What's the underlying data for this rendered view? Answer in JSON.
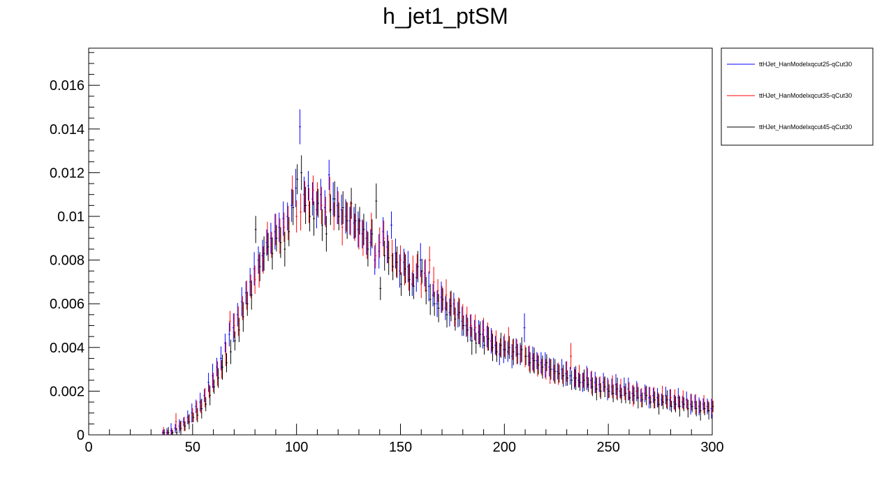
{
  "chart_data": {
    "type": "scatter",
    "title": "h_jet1_ptSM",
    "xlabel": "",
    "ylabel": "",
    "xlim": [
      0,
      300
    ],
    "ylim": [
      0,
      0.0177
    ],
    "grid": false,
    "legend_position": "top-right, outside plot",
    "x_ticks": [
      "0",
      "50",
      "100",
      "150",
      "200",
      "250",
      "300"
    ],
    "y_ticks": [
      "0",
      "0.002",
      "0.004",
      "0.006",
      "0.008",
      "0.01",
      "0.012",
      "0.014",
      "0.016"
    ],
    "bin_width": 2,
    "series": [
      {
        "name": "ttHJet_HanModelxqcut25-qCut30",
        "color": "#0000ff",
        "x": [
          36,
          38,
          40,
          42,
          44,
          46,
          48,
          50,
          52,
          54,
          56,
          58,
          60,
          62,
          64,
          66,
          68,
          70,
          72,
          74,
          76,
          78,
          80,
          82,
          84,
          86,
          88,
          90,
          92,
          94,
          96,
          98,
          100,
          102,
          104,
          106,
          108,
          110,
          112,
          114,
          116,
          118,
          120,
          122,
          124,
          126,
          128,
          130,
          132,
          134,
          136,
          138,
          140,
          142,
          144,
          146,
          148,
          150,
          152,
          154,
          156,
          158,
          160,
          162,
          164,
          166,
          168,
          170,
          172,
          174,
          176,
          178,
          180,
          182,
          184,
          186,
          188,
          190,
          192,
          194,
          196,
          198,
          200,
          202,
          204,
          206,
          208,
          210,
          212,
          214,
          216,
          218,
          220,
          222,
          224,
          226,
          228,
          230,
          232,
          234,
          236,
          238,
          240,
          242,
          244,
          246,
          248,
          250,
          252,
          254,
          256,
          258,
          260,
          262,
          264,
          266,
          268,
          270,
          272,
          274,
          276,
          278,
          280,
          282,
          284,
          286,
          288,
          290,
          292,
          294,
          296,
          298,
          300
        ],
        "y": [
          0.0001,
          0.0001,
          0.0002,
          0.0003,
          0.0004,
          0.0006,
          0.0008,
          0.001,
          0.0013,
          0.0015,
          0.0018,
          0.0024,
          0.0027,
          0.0031,
          0.0035,
          0.0042,
          0.0046,
          0.0049,
          0.0055,
          0.0061,
          0.0065,
          0.007,
          0.0076,
          0.008,
          0.0082,
          0.0088,
          0.009,
          0.0093,
          0.0095,
          0.0099,
          0.01,
          0.0105,
          0.0113,
          0.0141,
          0.011,
          0.0114,
          0.0108,
          0.0103,
          0.011,
          0.0104,
          0.0119,
          0.0108,
          0.0105,
          0.0103,
          0.01,
          0.0098,
          0.0097,
          0.0094,
          0.0092,
          0.009,
          0.0088,
          0.008,
          0.0084,
          0.0093,
          0.0086,
          0.0096,
          0.0083,
          0.0075,
          0.0079,
          0.0077,
          0.0069,
          0.0072,
          0.008,
          0.0074,
          0.0068,
          0.0064,
          0.006,
          0.0063,
          0.0058,
          0.0056,
          0.006,
          0.0055,
          0.0052,
          0.005,
          0.0049,
          0.0048,
          0.0047,
          0.0046,
          0.0045,
          0.0043,
          0.0041,
          0.0037,
          0.0039,
          0.0038,
          0.0036,
          0.004,
          0.0037,
          0.0049,
          0.0036,
          0.0035,
          0.0034,
          0.0033,
          0.0032,
          0.0031,
          0.003,
          0.0029,
          0.003,
          0.0028,
          0.0027,
          0.0026,
          0.0025,
          0.0024,
          0.0026,
          0.0025,
          0.0024,
          0.0023,
          0.0024,
          0.0021,
          0.0022,
          0.0023,
          0.002,
          0.0022,
          0.0021,
          0.0019,
          0.002,
          0.0018,
          0.0019,
          0.0017,
          0.0018,
          0.0017,
          0.0016,
          0.0018,
          0.0016,
          0.0015,
          0.0017,
          0.0015,
          0.0016,
          0.0014,
          0.0015,
          0.0013,
          0.0014,
          0.0013,
          0.0012
        ]
      },
      {
        "name": "ttHJet_HanModelxqcut35-qCut30",
        "color": "#ff0000",
        "x": [
          36,
          38,
          40,
          42,
          44,
          46,
          48,
          50,
          52,
          54,
          56,
          58,
          60,
          62,
          64,
          66,
          68,
          70,
          72,
          74,
          76,
          78,
          80,
          82,
          84,
          86,
          88,
          90,
          92,
          94,
          96,
          98,
          100,
          102,
          104,
          106,
          108,
          110,
          112,
          114,
          116,
          118,
          120,
          122,
          124,
          126,
          128,
          130,
          132,
          134,
          136,
          138,
          140,
          142,
          144,
          146,
          148,
          150,
          152,
          154,
          156,
          158,
          160,
          162,
          164,
          166,
          168,
          170,
          172,
          174,
          176,
          178,
          180,
          182,
          184,
          186,
          188,
          190,
          192,
          194,
          196,
          198,
          200,
          202,
          204,
          206,
          208,
          210,
          212,
          214,
          216,
          218,
          220,
          222,
          224,
          226,
          228,
          230,
          232,
          234,
          236,
          238,
          240,
          242,
          244,
          246,
          248,
          250,
          252,
          254,
          256,
          258,
          260,
          262,
          264,
          266,
          268,
          270,
          272,
          274,
          276,
          278,
          280,
          282,
          284,
          286,
          288,
          290,
          292,
          294,
          296,
          298,
          300
        ],
        "y": [
          0.0001,
          0.0001,
          0.0001,
          0.0006,
          0.0004,
          0.0005,
          0.0007,
          0.0009,
          0.0011,
          0.0013,
          0.0017,
          0.002,
          0.0024,
          0.0028,
          0.003,
          0.0037,
          0.0052,
          0.005,
          0.0052,
          0.0058,
          0.0064,
          0.0068,
          0.0071,
          0.0075,
          0.008,
          0.009,
          0.0087,
          0.0094,
          0.0091,
          0.0095,
          0.0097,
          0.0112,
          0.01,
          0.0102,
          0.0109,
          0.0105,
          0.0112,
          0.0108,
          0.0105,
          0.0102,
          0.011,
          0.01,
          0.0104,
          0.0095,
          0.01,
          0.0099,
          0.0095,
          0.0092,
          0.009,
          0.0087,
          0.0094,
          0.0082,
          0.0088,
          0.009,
          0.0085,
          0.0082,
          0.0078,
          0.008,
          0.0076,
          0.0072,
          0.0075,
          0.0077,
          0.0069,
          0.0073,
          0.008,
          0.007,
          0.0066,
          0.0062,
          0.0064,
          0.006,
          0.0056,
          0.0058,
          0.0054,
          0.0052,
          0.005,
          0.0049,
          0.0046,
          0.0048,
          0.0045,
          0.0043,
          0.0042,
          0.004,
          0.0041,
          0.0043,
          0.0039,
          0.0038,
          0.0037,
          0.0036,
          0.0035,
          0.0033,
          0.0032,
          0.0031,
          0.003,
          0.0029,
          0.0028,
          0.0028,
          0.0027,
          0.0029,
          0.0036,
          0.0026,
          0.0027,
          0.0025,
          0.0026,
          0.0024,
          0.0023,
          0.0022,
          0.0023,
          0.0021,
          0.0022,
          0.002,
          0.0021,
          0.0019,
          0.002,
          0.0018,
          0.002,
          0.0017,
          0.0019,
          0.0018,
          0.0017,
          0.0016,
          0.0018,
          0.0015,
          0.0017,
          0.0016,
          0.0015,
          0.0016,
          0.0014,
          0.0015,
          0.0014,
          0.0013,
          0.0014,
          0.0013,
          0.0013
        ]
      },
      {
        "name": "ttHJet_HanModelxqcut45-qCut30",
        "color": "#000000",
        "x": [
          36,
          38,
          40,
          42,
          44,
          46,
          48,
          50,
          52,
          54,
          56,
          58,
          60,
          62,
          64,
          66,
          68,
          70,
          72,
          74,
          76,
          78,
          80,
          82,
          84,
          86,
          88,
          90,
          92,
          94,
          96,
          98,
          100,
          102,
          104,
          106,
          108,
          110,
          112,
          114,
          116,
          118,
          120,
          122,
          124,
          126,
          128,
          130,
          132,
          134,
          136,
          138,
          140,
          142,
          144,
          146,
          148,
          150,
          152,
          154,
          156,
          158,
          160,
          162,
          164,
          166,
          168,
          170,
          172,
          174,
          176,
          178,
          180,
          182,
          184,
          186,
          188,
          190,
          192,
          194,
          196,
          198,
          200,
          202,
          204,
          206,
          208,
          210,
          212,
          214,
          216,
          218,
          220,
          222,
          224,
          226,
          228,
          230,
          232,
          234,
          236,
          238,
          240,
          242,
          244,
          246,
          248,
          250,
          252,
          254,
          256,
          258,
          260,
          262,
          264,
          266,
          268,
          270,
          272,
          274,
          276,
          278,
          280,
          282,
          284,
          286,
          288,
          290,
          292,
          294,
          296,
          298,
          300
        ],
        "y": [
          0.0001,
          0.0001,
          0.0001,
          0.0001,
          0.0003,
          0.0004,
          0.0006,
          0.0008,
          0.0009,
          0.0012,
          0.0014,
          0.0018,
          0.0022,
          0.0026,
          0.0031,
          0.0033,
          0.0038,
          0.0043,
          0.0048,
          0.0054,
          0.006,
          0.0064,
          0.0094,
          0.0077,
          0.0083,
          0.0086,
          0.0083,
          0.009,
          0.0088,
          0.0085,
          0.0093,
          0.0104,
          0.0117,
          0.012,
          0.0105,
          0.01,
          0.0099,
          0.0106,
          0.0096,
          0.0092,
          0.0103,
          0.0108,
          0.01,
          0.0104,
          0.0098,
          0.0106,
          0.0098,
          0.0098,
          0.0094,
          0.0085,
          0.0092,
          0.0107,
          0.0067,
          0.0082,
          0.0081,
          0.0077,
          0.0079,
          0.0069,
          0.0076,
          0.0071,
          0.0068,
          0.0077,
          0.0075,
          0.0066,
          0.0062,
          0.006,
          0.0058,
          0.0062,
          0.0055,
          0.0059,
          0.0053,
          0.0056,
          0.005,
          0.0048,
          0.0043,
          0.0042,
          0.0046,
          0.0041,
          0.0044,
          0.004,
          0.0038,
          0.0041,
          0.0039,
          0.004,
          0.0038,
          0.0037,
          0.0039,
          0.0036,
          0.0033,
          0.0034,
          0.0032,
          0.0031,
          0.0033,
          0.003,
          0.0029,
          0.0028,
          0.0027,
          0.0026,
          0.0025,
          0.0026,
          0.0024,
          0.0025,
          0.0023,
          0.0022,
          0.0021,
          0.002,
          0.0022,
          0.002,
          0.0019,
          0.0021,
          0.0018,
          0.0019,
          0.0017,
          0.0018,
          0.0017,
          0.0016,
          0.0018,
          0.0015,
          0.0016,
          0.0014,
          0.0015,
          0.0016,
          0.0013,
          0.0014,
          0.0013,
          0.0014,
          0.0012,
          0.0013,
          0.0012,
          0.0011,
          0.0012,
          0.0011,
          0.0013
        ]
      }
    ]
  }
}
